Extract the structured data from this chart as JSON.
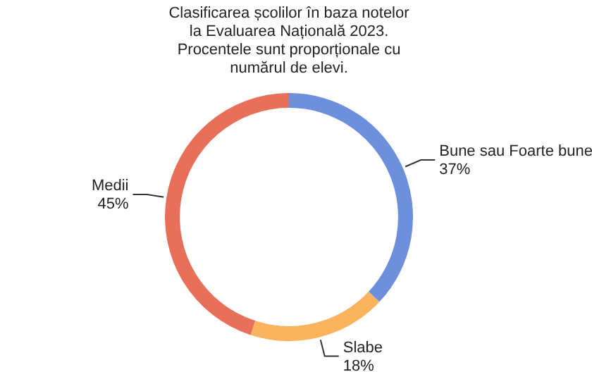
{
  "chart_data": {
    "type": "donut",
    "title": "Clasificarea școlilor în baza notelor la Evaluarea Națională 2023. Procentele sunt proporționale cu numărul de elevi.",
    "categories": [
      "Bune sau Foarte bune",
      "Slabe",
      "Medii"
    ],
    "values": [
      37,
      18,
      45
    ],
    "value_labels": [
      "37%",
      "18%",
      "45%"
    ],
    "colors": [
      "#6d8fdc",
      "#fbb45e",
      "#e8705a"
    ],
    "legend": false
  }
}
